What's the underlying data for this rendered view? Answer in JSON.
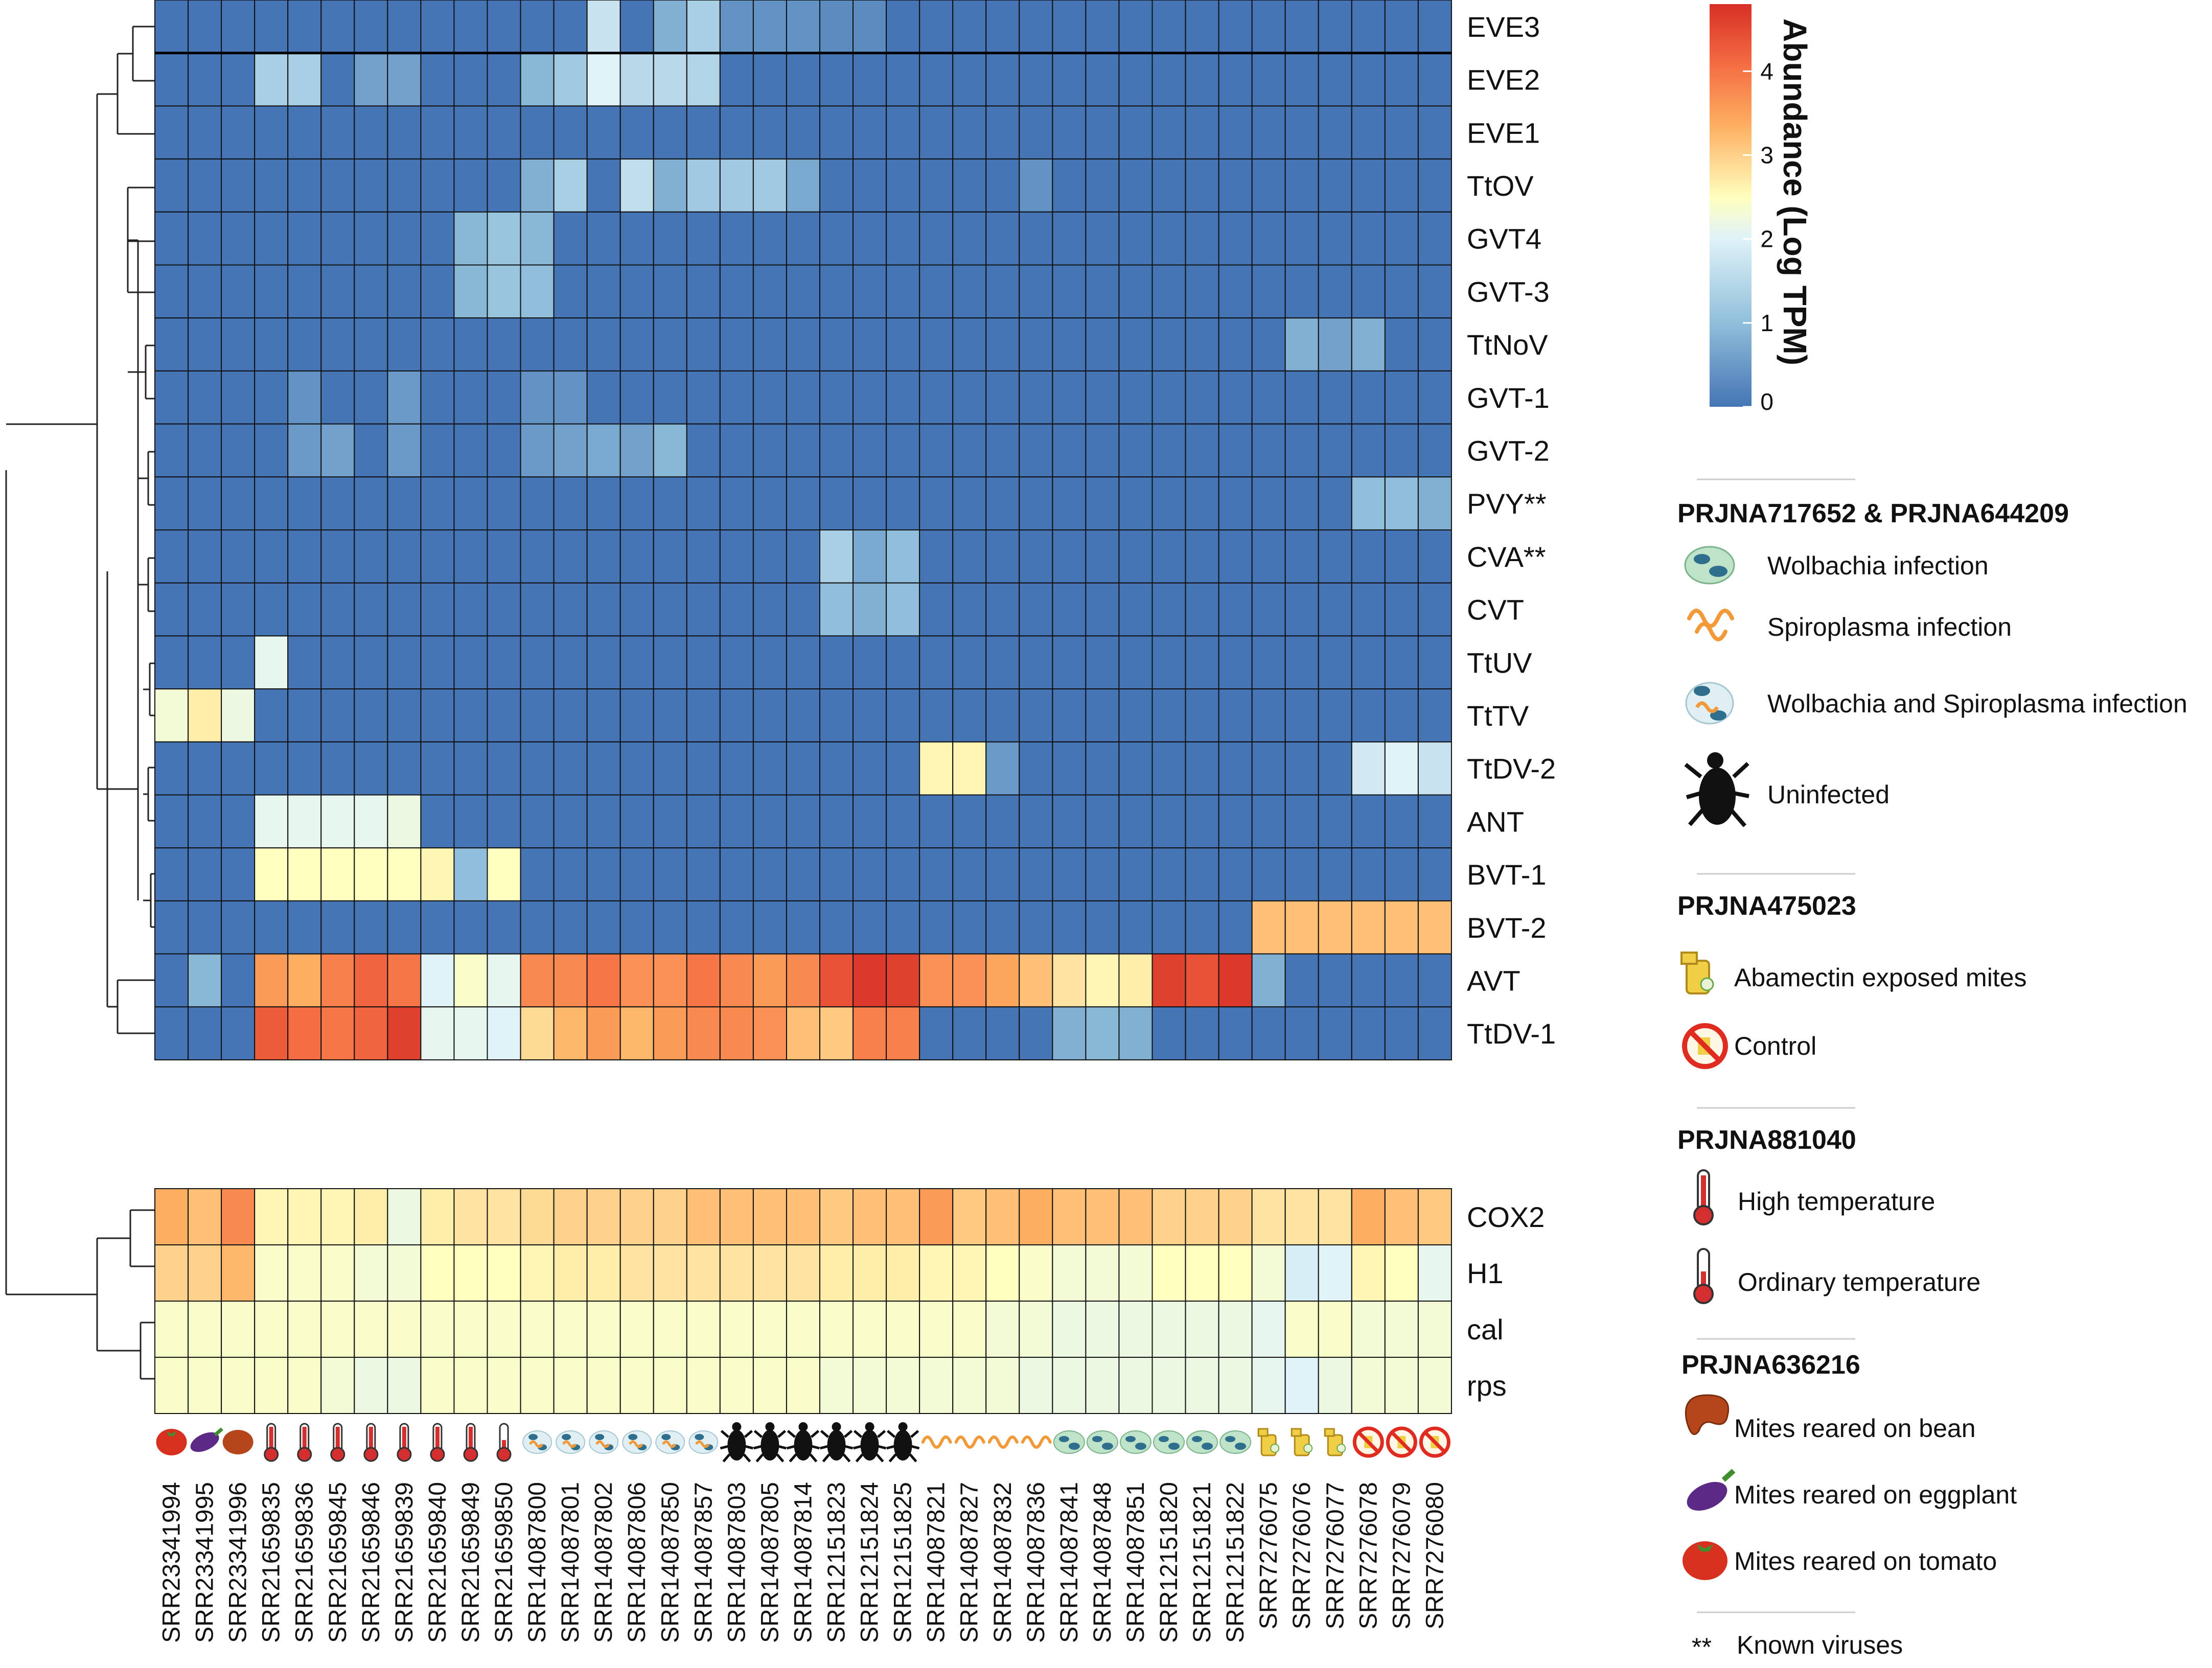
{
  "chart_data": {
    "type": "heatmap",
    "colorbar": {
      "title": "Abundance (Log TPM)",
      "ticks": [
        0,
        1,
        2,
        3,
        4
      ],
      "range": [
        0,
        4.8
      ]
    },
    "columns": [
      "SRR23341994",
      "SRR23341995",
      "SRR23341996",
      "SRR21659835",
      "SRR21659836",
      "SRR21659845",
      "SRR21659846",
      "SRR21659839",
      "SRR21659840",
      "SRR21659849",
      "SRR21659850",
      "SRR14087800",
      "SRR14087801",
      "SRR14087802",
      "SRR14087806",
      "SRR14087850",
      "SRR14087857",
      "SRR14087803",
      "SRR14087805",
      "SRR14087814",
      "SRR12151823",
      "SRR12151824",
      "SRR12151825",
      "SRR14087821",
      "SRR14087827",
      "SRR14087832",
      "SRR14087836",
      "SRR14087841",
      "SRR14087848",
      "SRR14087851",
      "SRR12151820",
      "SRR12151821",
      "SRR12151822",
      "SRR7276075",
      "SRR7276076",
      "SRR7276077",
      "SRR7276078",
      "SRR7276079",
      "SRR7276080"
    ],
    "column_groups": [
      "tomato",
      "eggplant",
      "bean",
      "high-temp",
      "high-temp",
      "high-temp",
      "high-temp",
      "high-temp",
      "high-temp",
      "high-temp",
      "ordinary-temp",
      "wolb-spiro",
      "wolb-spiro",
      "wolb-spiro",
      "wolb-spiro",
      "wolb-spiro",
      "wolb-spiro",
      "uninfected",
      "uninfected",
      "uninfected",
      "uninfected",
      "uninfected",
      "uninfected",
      "spiroplasma",
      "spiroplasma",
      "spiroplasma",
      "spiroplasma",
      "wolbachia",
      "wolbachia",
      "wolbachia",
      "wolbachia",
      "wolbachia",
      "wolbachia",
      "abamectin",
      "abamectin",
      "abamectin",
      "control",
      "control",
      "control"
    ],
    "virus_rows": [
      "EVE3",
      "EVE2",
      "EVE1",
      "TtOV",
      "GVT4",
      "GVT-3",
      "TtNoV",
      "GVT-1",
      "GVT-2",
      "PVY**",
      "CVA**",
      "CVT",
      "TtUV",
      "TtTV",
      "TtDV-2",
      "ANT",
      "BVT-1",
      "BVT-2",
      "AVT",
      "TtDV-1"
    ],
    "virus_values": [
      [
        0,
        0,
        0,
        0,
        0,
        0,
        0,
        0,
        0,
        0,
        0,
        0,
        0,
        1.7,
        0,
        0.8,
        1.3,
        0.4,
        0.4,
        0.4,
        0.3,
        0.3,
        0,
        0,
        0,
        0,
        0,
        0,
        0,
        0,
        0,
        0,
        0,
        0,
        0,
        0,
        0,
        0,
        0
      ],
      [
        0,
        0,
        0,
        1.3,
        1.3,
        0,
        0.6,
        0.6,
        0,
        0,
        0,
        0.9,
        1.2,
        2.0,
        1.5,
        1.5,
        1.4,
        0,
        0,
        0,
        0,
        0,
        0,
        0,
        0,
        0,
        0,
        0,
        0,
        0,
        0,
        0,
        0,
        0,
        0,
        0,
        0,
        0,
        0
      ],
      [
        0,
        0,
        0,
        0,
        0,
        0,
        0,
        0,
        0,
        0,
        0,
        0,
        0,
        0,
        0,
        0,
        0,
        0,
        0,
        0,
        0,
        0,
        0,
        0,
        0,
        0,
        0,
        0,
        0,
        0,
        0,
        0,
        0,
        0,
        0,
        0,
        0,
        0,
        0
      ],
      [
        0,
        0,
        0,
        0,
        0,
        0,
        0,
        0,
        0,
        0,
        0,
        0.8,
        1.3,
        0,
        1.6,
        0.8,
        1.2,
        1.2,
        1.2,
        0.7,
        0,
        0,
        0,
        0,
        0,
        0,
        0.4,
        0,
        0,
        0,
        0,
        0,
        0,
        0,
        0,
        0,
        0,
        0,
        0
      ],
      [
        0,
        0,
        0,
        0,
        0,
        0,
        0,
        0,
        0,
        0.9,
        1.1,
        0.9,
        0,
        0,
        0,
        0,
        0,
        0,
        0,
        0,
        0,
        0,
        0,
        0,
        0,
        0,
        0,
        0,
        0,
        0,
        0,
        0,
        0,
        0,
        0,
        0,
        0,
        0,
        0
      ],
      [
        0,
        0,
        0,
        0,
        0,
        0,
        0,
        0,
        0,
        0.9,
        1.1,
        1.0,
        0,
        0,
        0,
        0,
        0,
        0,
        0,
        0,
        0,
        0,
        0,
        0,
        0,
        0,
        0,
        0,
        0,
        0,
        0,
        0,
        0,
        0,
        0,
        0,
        0,
        0,
        0
      ],
      [
        0,
        0,
        0,
        0,
        0,
        0,
        0,
        0,
        0,
        0,
        0,
        0,
        0,
        0,
        0,
        0,
        0,
        0,
        0,
        0,
        0,
        0,
        0,
        0,
        0,
        0,
        0,
        0,
        0,
        0,
        0,
        0,
        0,
        0,
        0.8,
        0.6,
        0.8,
        0,
        0
      ],
      [
        0,
        0,
        0,
        0,
        0.4,
        0,
        0,
        0.5,
        0,
        0,
        0,
        0.4,
        0.4,
        0,
        0,
        0,
        0,
        0,
        0,
        0,
        0,
        0,
        0,
        0,
        0,
        0,
        0,
        0,
        0,
        0,
        0,
        0,
        0,
        0,
        0,
        0,
        0,
        0,
        0
      ],
      [
        0,
        0,
        0,
        0,
        0.5,
        0.6,
        0,
        0.5,
        0,
        0,
        0,
        0.5,
        0.6,
        0.7,
        0.6,
        0.9,
        0,
        0,
        0,
        0,
        0,
        0,
        0,
        0,
        0,
        0,
        0,
        0,
        0,
        0,
        0,
        0,
        0,
        0,
        0,
        0,
        0,
        0,
        0
      ],
      [
        0,
        0,
        0,
        0,
        0,
        0,
        0,
        0,
        0,
        0,
        0,
        0,
        0,
        0,
        0,
        0,
        0,
        0,
        0,
        0,
        0,
        0,
        0,
        0,
        0,
        0,
        0,
        0,
        0,
        0,
        0,
        0,
        0,
        0,
        0,
        0,
        1.0,
        1.0,
        0.8
      ],
      [
        0,
        0,
        0,
        0,
        0,
        0,
        0,
        0,
        0,
        0,
        0,
        0,
        0,
        0,
        0,
        0,
        0,
        0,
        0,
        0,
        1.3,
        0.7,
        1.0,
        0,
        0,
        0,
        0,
        0,
        0,
        0,
        0,
        0,
        0,
        0,
        0,
        0,
        0,
        0,
        0
      ],
      [
        0,
        0,
        0,
        0,
        0,
        0,
        0,
        0,
        0,
        0,
        0,
        0,
        0,
        0,
        0,
        0,
        0,
        0,
        0,
        0,
        1.0,
        0.8,
        1.0,
        0,
        0,
        0,
        0,
        0,
        0,
        0,
        0,
        0,
        0,
        0,
        0,
        0,
        0,
        0,
        0
      ],
      [
        0,
        0,
        0,
        2.1,
        0,
        0,
        0,
        0,
        0,
        0,
        0,
        0,
        0,
        0,
        0,
        0,
        0,
        0,
        0,
        0,
        0,
        0,
        0,
        0,
        0,
        0,
        0,
        0,
        0,
        0,
        0,
        0,
        0,
        0,
        0,
        0,
        0,
        0,
        0
      ],
      [
        2.3,
        2.7,
        2.2,
        0,
        0,
        0,
        0,
        0,
        0,
        0,
        0,
        0,
        0,
        0,
        0,
        0,
        0,
        0,
        0,
        0,
        0,
        0,
        0,
        0,
        0,
        0,
        0,
        0,
        0,
        0,
        0,
        0,
        0,
        0,
        0,
        0,
        0,
        0,
        0
      ],
      [
        0,
        0,
        0,
        0,
        0,
        0,
        0,
        0,
        0,
        0,
        0,
        0,
        0,
        0,
        0,
        0,
        0,
        0,
        0,
        0,
        0,
        0,
        0,
        2.6,
        2.6,
        0.5,
        0,
        0,
        0,
        0,
        0,
        0,
        0,
        0,
        0,
        0,
        1.8,
        2.0,
        1.7
      ],
      [
        0,
        0,
        0,
        2.1,
        2.1,
        2.1,
        2.1,
        2.2,
        0,
        0,
        0,
        0,
        0,
        0,
        0,
        0,
        0,
        0,
        0,
        0,
        0,
        0,
        0,
        0,
        0,
        0,
        0,
        0,
        0,
        0,
        0,
        0,
        0,
        0,
        0,
        0,
        0,
        0,
        0
      ],
      [
        0,
        0,
        0,
        2.5,
        2.5,
        2.5,
        2.5,
        2.5,
        2.6,
        1.0,
        2.5,
        0,
        0,
        0,
        0,
        0,
        0,
        0,
        0,
        0,
        0,
        0,
        0,
        0,
        0,
        0,
        0,
        0,
        0,
        0,
        0,
        0,
        0,
        0,
        0,
        0,
        0,
        0,
        0
      ],
      [
        0,
        0,
        0,
        0,
        0,
        0,
        0,
        0,
        0,
        0,
        0,
        0,
        0,
        0,
        0,
        0,
        0,
        0,
        0,
        0,
        0,
        0,
        0,
        0,
        0,
        0,
        0,
        0,
        0,
        0,
        0,
        0,
        0,
        3.2,
        3.2,
        3.2,
        3.2,
        3.2,
        3.2
      ],
      [
        0,
        0.9,
        0,
        3.6,
        3.4,
        3.9,
        4.2,
        4.0,
        2.0,
        2.4,
        2.1,
        3.8,
        3.8,
        4.0,
        3.7,
        3.7,
        4.0,
        3.8,
        3.6,
        3.8,
        4.4,
        4.7,
        4.6,
        3.7,
        3.7,
        3.5,
        3.2,
        2.8,
        2.6,
        2.7,
        4.6,
        4.4,
        4.7,
        0.8,
        0,
        0,
        0,
        0,
        0
      ],
      [
        0,
        0,
        0,
        4.3,
        4.1,
        4.0,
        4.2,
        4.6,
        2.1,
        2.1,
        2.0,
        2.9,
        3.3,
        3.6,
        3.3,
        3.6,
        3.8,
        3.8,
        3.7,
        3.2,
        3.1,
        3.9,
        3.9,
        0,
        0,
        0,
        0,
        0.8,
        0.9,
        0.8,
        0,
        0,
        0,
        0,
        0,
        0,
        0,
        0,
        0
      ]
    ],
    "gene_rows": [
      "COX2",
      "H1",
      "cal",
      "rps"
    ],
    "gene_values": [
      [
        3.4,
        3.2,
        3.8,
        2.6,
        2.6,
        2.6,
        2.7,
        2.2,
        2.7,
        2.8,
        2.8,
        2.9,
        3.0,
        3.0,
        3.0,
        3.0,
        3.2,
        3.2,
        3.2,
        3.2,
        3.1,
        3.2,
        3.2,
        3.6,
        3.1,
        3.2,
        3.4,
        3.2,
        3.2,
        3.2,
        3.0,
        3.0,
        3.0,
        2.8,
        2.8,
        2.8,
        3.4,
        3.2,
        3.1
      ],
      [
        3.0,
        3.0,
        3.3,
        2.4,
        2.4,
        2.4,
        2.3,
        2.3,
        2.5,
        2.5,
        2.5,
        2.6,
        2.7,
        2.7,
        2.8,
        2.8,
        2.8,
        2.8,
        2.8,
        2.8,
        2.7,
        2.7,
        2.7,
        2.6,
        2.6,
        2.5,
        2.4,
        2.3,
        2.3,
        2.3,
        2.5,
        2.5,
        2.5,
        2.3,
        1.9,
        2.0,
        2.6,
        2.5,
        2.1
      ],
      [
        2.4,
        2.4,
        2.4,
        2.4,
        2.4,
        2.4,
        2.4,
        2.4,
        2.4,
        2.4,
        2.4,
        2.4,
        2.4,
        2.4,
        2.4,
        2.4,
        2.4,
        2.4,
        2.4,
        2.4,
        2.4,
        2.4,
        2.4,
        2.4,
        2.4,
        2.3,
        2.3,
        2.2,
        2.2,
        2.2,
        2.2,
        2.2,
        2.2,
        2.1,
        2.4,
        2.4,
        2.3,
        2.3,
        2.3
      ],
      [
        2.4,
        2.4,
        2.4,
        2.4,
        2.4,
        2.3,
        2.2,
        2.2,
        2.4,
        2.4,
        2.4,
        2.4,
        2.4,
        2.4,
        2.4,
        2.4,
        2.4,
        2.4,
        2.4,
        2.4,
        2.3,
        2.3,
        2.3,
        2.3,
        2.3,
        2.3,
        2.2,
        2.2,
        2.2,
        2.2,
        2.2,
        2.2,
        2.2,
        2.1,
        2.0,
        2.2,
        2.3,
        2.3,
        2.3
      ]
    ]
  },
  "legend": {
    "sections": [
      {
        "title": "PRJNA717652 & PRJNA644209",
        "items": [
          {
            "icon": "wolbachia-icon",
            "label": "Wolbachia infection"
          },
          {
            "icon": "spiroplasma-icon",
            "label": "Spiroplasma infection"
          },
          {
            "icon": "wolbachia-spiroplasma-icon",
            "label": "Wolbachia and Spiroplasma infection"
          },
          {
            "icon": "mite-icon",
            "label": "Uninfected"
          }
        ]
      },
      {
        "title": "PRJNA475023",
        "items": [
          {
            "icon": "spray-icon",
            "label": "Abamectin exposed mites"
          },
          {
            "icon": "prohibited-icon",
            "label": "Control"
          }
        ]
      },
      {
        "title": "PRJNA881040",
        "items": [
          {
            "icon": "thermometer-high-icon",
            "label": "High temperature"
          },
          {
            "icon": "thermometer-ordinary-icon",
            "label": "Ordinary temperature"
          }
        ]
      },
      {
        "title": "PRJNA636216",
        "items": [
          {
            "icon": "bean-icon",
            "label": "Mites reared on bean"
          },
          {
            "icon": "eggplant-icon",
            "label": "Mites reared on eggplant"
          },
          {
            "icon": "tomato-icon",
            "label": "Mites reared on tomato"
          }
        ]
      }
    ],
    "footnote": {
      "symbol": "**",
      "label": "Known viruses"
    }
  },
  "colors": {
    "low": "#4575b4",
    "mid": "#ffffbf",
    "high": "#d73027"
  }
}
